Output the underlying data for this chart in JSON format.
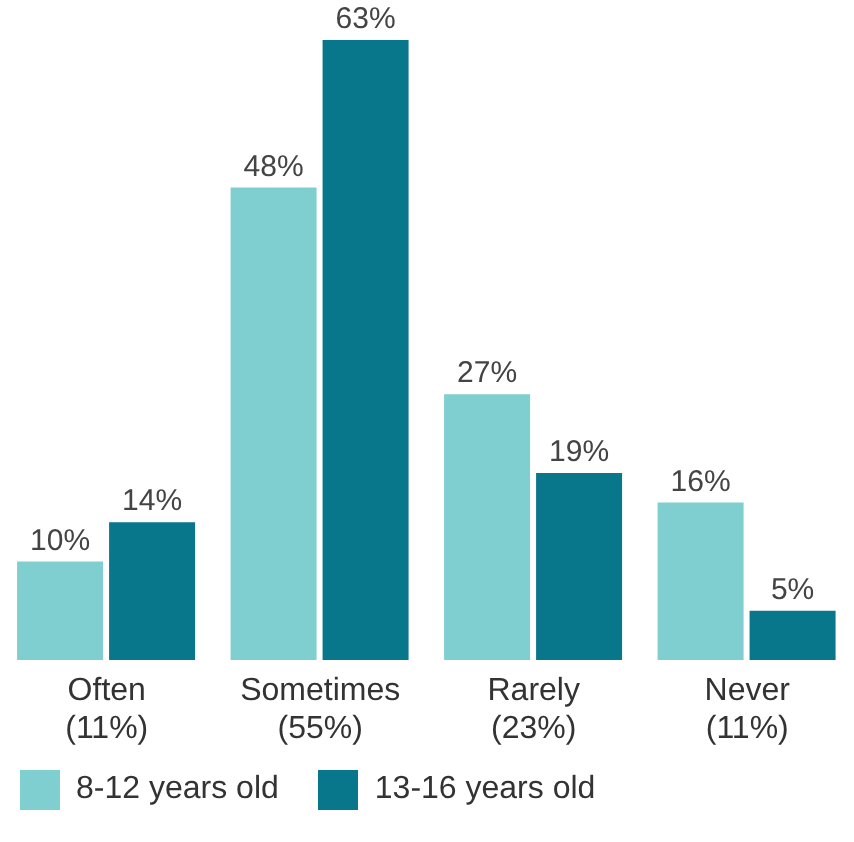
{
  "chart_data": {
    "type": "bar",
    "categories": [
      "Often\n(11%)",
      "Sometimes\n(55%)",
      "Rarely\n(23%)",
      "Never\n(11%)"
    ],
    "series": [
      {
        "name": "8-12 years old",
        "color": "#7fcfd1",
        "values": [
          10,
          48,
          27,
          16
        ],
        "value_labels": [
          "10%",
          "48%",
          "27%",
          "16%"
        ]
      },
      {
        "name": "13-16 years old",
        "color": "#08778c",
        "values": [
          14,
          63,
          19,
          5
        ],
        "value_labels": [
          "14%",
          "63%",
          "19%",
          "5%"
        ]
      }
    ],
    "legend": "bottom left"
  }
}
